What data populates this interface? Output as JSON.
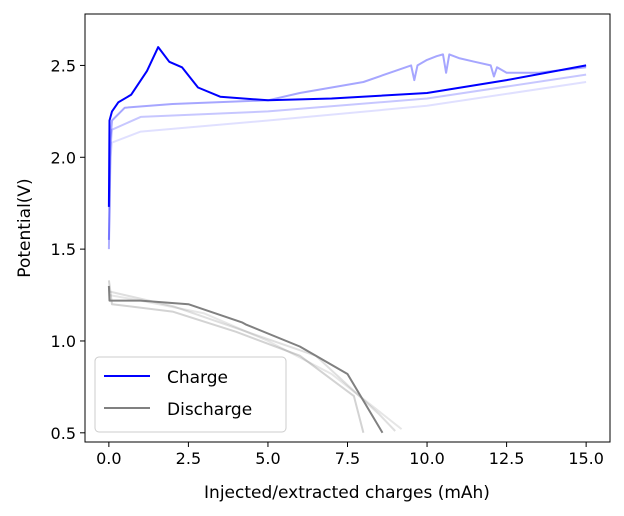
{
  "chart_data": {
    "type": "line",
    "title": "",
    "xlabel": "Injected/extracted charges (mAh)",
    "ylabel": "Potential(V)",
    "xlim": [
      -0.75,
      15.75
    ],
    "ylim": [
      0.45,
      2.78
    ],
    "xticks": [
      0.0,
      2.5,
      5.0,
      7.5,
      10.0,
      12.5,
      15.0
    ],
    "xtick_labels": [
      "0.0",
      "2.5",
      "5.0",
      "7.5",
      "10.0",
      "12.5",
      "15.0"
    ],
    "yticks": [
      0.5,
      1.0,
      1.5,
      2.0,
      2.5
    ],
    "ytick_labels": [
      "0.5",
      "1.0",
      "1.5",
      "2.0",
      "2.5"
    ],
    "grid": false,
    "legend": {
      "placement": "lower-left",
      "entries": [
        {
          "label": "Charge",
          "color": "#0000ff"
        },
        {
          "label": "Discharge",
          "color": "#808080"
        }
      ]
    },
    "series": [
      {
        "group": "charge",
        "color": "#0000ff",
        "opacity": 0.12,
        "x": [
          0,
          0.05,
          0.1,
          1,
          5,
          10,
          15
        ],
        "y": [
          1.5,
          2.0,
          2.08,
          2.14,
          2.2,
          2.28,
          2.41
        ]
      },
      {
        "group": "charge",
        "color": "#0000ff",
        "opacity": 0.22,
        "x": [
          0,
          0.05,
          0.1,
          1,
          5,
          10,
          15
        ],
        "y": [
          1.5,
          2.05,
          2.15,
          2.22,
          2.25,
          2.32,
          2.45
        ]
      },
      {
        "group": "charge",
        "color": "#0000ff",
        "opacity": 0.35,
        "x": [
          0,
          0.05,
          0.1,
          0.5,
          2,
          5,
          6,
          8,
          9,
          9.5,
          9.6,
          9.7,
          10,
          10.3,
          10.5,
          10.6,
          10.7,
          11,
          11.5,
          12,
          12.1,
          12.2,
          12.5,
          13.5,
          15
        ],
        "y": [
          1.55,
          2.1,
          2.2,
          2.27,
          2.29,
          2.31,
          2.35,
          2.41,
          2.47,
          2.5,
          2.42,
          2.5,
          2.53,
          2.55,
          2.56,
          2.46,
          2.56,
          2.54,
          2.52,
          2.5,
          2.44,
          2.49,
          2.46,
          2.46,
          2.49
        ]
      },
      {
        "group": "charge",
        "color": "#0000ff",
        "opacity": 1,
        "x": [
          0,
          0.02,
          0.1,
          0.3,
          0.7,
          1.2,
          1.55,
          1.9,
          2.3,
          2.8,
          3.5,
          5,
          7,
          10,
          12.5,
          15
        ],
        "y": [
          1.73,
          2.2,
          2.25,
          2.3,
          2.34,
          2.47,
          2.6,
          2.52,
          2.49,
          2.38,
          2.33,
          2.31,
          2.32,
          2.35,
          2.42,
          2.5
        ]
      },
      {
        "group": "discharge",
        "color": "#808080",
        "opacity": 0.2,
        "x": [
          0,
          1,
          3,
          5,
          7,
          9.2
        ],
        "y": [
          1.25,
          1.22,
          1.15,
          1.0,
          0.82,
          0.52
        ]
      },
      {
        "group": "discharge",
        "color": "#808080",
        "opacity": 0.25,
        "x": [
          0,
          2,
          4,
          6.5,
          8.5,
          9.0
        ],
        "y": [
          1.27,
          1.19,
          1.07,
          0.92,
          0.6,
          0.51
        ]
      },
      {
        "group": "discharge",
        "color": "#808080",
        "opacity": 0.35,
        "x": [
          0,
          0.1,
          2,
          4,
          6,
          7.7,
          8.0
        ],
        "y": [
          1.33,
          1.2,
          1.16,
          1.05,
          0.92,
          0.7,
          0.5
        ]
      },
      {
        "group": "discharge",
        "color": "#808080",
        "opacity": 1,
        "x": [
          0,
          0.02,
          1,
          2.5,
          4.2,
          4.3,
          6,
          7.5,
          8.6
        ],
        "y": [
          1.3,
          1.22,
          1.22,
          1.2,
          1.1,
          1.09,
          0.97,
          0.82,
          0.5
        ]
      }
    ]
  }
}
